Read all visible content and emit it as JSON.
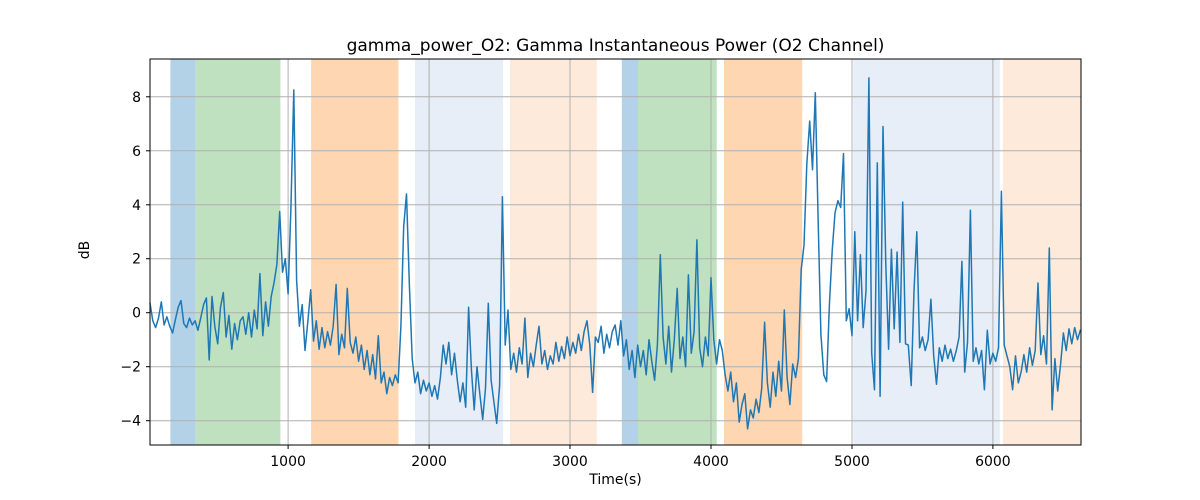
{
  "chart_data": {
    "type": "line",
    "title": "gamma_power_O2: Gamma Instantaneous Power (O2 Channel)",
    "xlabel": "Time(s)",
    "ylabel": "dB",
    "series_name": "gamma_power_O2",
    "legend": false,
    "grid": true,
    "xlim": [
      20,
      6625
    ],
    "ylim": [
      -4.9,
      9.4
    ],
    "x_ticks": [
      {
        "value": 1000,
        "label": "1000"
      },
      {
        "value": 2000,
        "label": "2000"
      },
      {
        "value": 3000,
        "label": "3000"
      },
      {
        "value": 4000,
        "label": "4000"
      },
      {
        "value": 5000,
        "label": "5000"
      },
      {
        "value": 6000,
        "label": "6000"
      }
    ],
    "y_ticks": [
      {
        "value": -4,
        "label": "−4"
      },
      {
        "value": -2,
        "label": "−2"
      },
      {
        "value": 0,
        "label": "0"
      },
      {
        "value": 2,
        "label": "2"
      },
      {
        "value": 4,
        "label": "4"
      },
      {
        "value": 6,
        "label": "6"
      },
      {
        "value": 8,
        "label": "8"
      }
    ],
    "line_color": "#1f77b4",
    "line_width": 1.5,
    "grid_color": "#b0b0b0",
    "spine_color": "#000000",
    "highlight_bands": [
      {
        "start": 165,
        "end": 345,
        "color": "#b3d2e7",
        "name": "blue"
      },
      {
        "start": 345,
        "end": 945,
        "color": "#bfe1c0",
        "name": "green"
      },
      {
        "start": 1163,
        "end": 1782,
        "color": "#fed7b2",
        "name": "orange"
      },
      {
        "start": 1900,
        "end": 2525,
        "color": "#e7eef7",
        "name": "pale-blue"
      },
      {
        "start": 2574,
        "end": 3190,
        "color": "#fdeada",
        "name": "pale-orange"
      },
      {
        "start": 3367,
        "end": 3482,
        "color": "#b3d2e7",
        "name": "blue"
      },
      {
        "start": 3482,
        "end": 4040,
        "color": "#bfe1c0",
        "name": "green"
      },
      {
        "start": 4092,
        "end": 4647,
        "color": "#fed7b2",
        "name": "orange"
      },
      {
        "start": 5009,
        "end": 6050,
        "color": "#e7eef7",
        "name": "pale-blue"
      },
      {
        "start": 6071,
        "end": 6625,
        "color": "#fdeada",
        "name": "pale-orange"
      }
    ],
    "x_start": 20,
    "x_step": 20,
    "values": [
      0.35,
      -0.3,
      -0.55,
      -0.2,
      0.4,
      -0.45,
      -0.15,
      -0.5,
      -0.75,
      -0.25,
      0.2,
      0.45,
      -0.4,
      -0.55,
      -0.2,
      -0.45,
      -0.3,
      -0.65,
      -0.2,
      0.3,
      0.55,
      -1.75,
      0.6,
      -0.5,
      -1.15,
      0.2,
      0.75,
      -0.9,
      -0.1,
      -1.35,
      -0.4,
      -1.0,
      -0.3,
      -0.15,
      -0.8,
      0.0,
      -0.9,
      0.1,
      -0.6,
      1.45,
      -0.85,
      0.4,
      -0.5,
      0.6,
      1.1,
      1.8,
      3.75,
      1.5,
      2.0,
      0.7,
      4.0,
      8.25,
      1.2,
      -0.5,
      0.3,
      -1.4,
      -0.3,
      0.85,
      -1.05,
      -0.3,
      -1.35,
      -0.55,
      -1.3,
      -0.7,
      -1.2,
      -0.5,
      1.05,
      -1.55,
      -0.8,
      -1.3,
      0.9,
      -1.1,
      -1.5,
      -0.9,
      -1.8,
      -1.2,
      -2.1,
      -1.4,
      -2.3,
      -1.55,
      -2.45,
      -0.85,
      -2.6,
      -2.2,
      -3.0,
      -2.4,
      -2.7,
      -2.3,
      -2.6,
      -0.5,
      3.2,
      4.4,
      1.0,
      -1.7,
      -2.6,
      -2.2,
      -3.0,
      -2.5,
      -2.9,
      -2.6,
      -3.1,
      -2.7,
      -3.2,
      -2.4,
      -1.2,
      -1.9,
      -1.1,
      -2.3,
      -1.5,
      -2.5,
      -3.3,
      -2.6,
      -3.5,
      0.2,
      -2.1,
      -3.6,
      -2.0,
      -3.0,
      -3.95,
      -2.8,
      0.35,
      -2.5,
      -3.3,
      -4.1,
      -2.7,
      4.3,
      -1.2,
      0.1,
      -2.1,
      -1.5,
      -2.2,
      -1.3,
      -1.9,
      -0.2,
      -2.4,
      -1.5,
      -2.0,
      -1.2,
      -0.5,
      -1.9,
      -1.4,
      -2.1,
      -1.6,
      -1.9,
      -1.1,
      -1.8,
      -1.25,
      -1.7,
      -0.9,
      -1.6,
      -1.1,
      -1.5,
      -0.8,
      -1.4,
      -0.7,
      -0.3,
      -1.2,
      -2.95,
      -0.9,
      -1.1,
      -0.5,
      -1.5,
      -0.8,
      -1.3,
      -0.7,
      -0.45,
      -1.2,
      -0.3,
      -1.6,
      -1.0,
      -2.1,
      -1.4,
      -2.4,
      -1.2,
      -2.0,
      -1.4,
      -2.3,
      -1.0,
      -1.8,
      -2.5,
      -1.2,
      2.15,
      -0.9,
      -1.9,
      -0.5,
      -2.2,
      -1.0,
      0.9,
      -1.7,
      -0.9,
      -2.0,
      1.4,
      -1.5,
      -0.7,
      2.7,
      -1.3,
      -2.0,
      -0.9,
      -1.6,
      1.3,
      -1.0,
      -1.9,
      -1.0,
      -1.4,
      -2.3,
      -2.9,
      -2.2,
      -3.3,
      -2.6,
      -4.05,
      -3.4,
      -3.0,
      -4.3,
      -3.6,
      -3.9,
      -3.2,
      -3.7,
      -2.8,
      -0.35,
      -2.6,
      -3.5,
      -2.2,
      -3.1,
      -1.8,
      -2.9,
      0.1,
      -2.4,
      -3.4,
      -1.9,
      -2.4,
      -1.7,
      1.6,
      2.5,
      5.5,
      7.1,
      5.3,
      8.15,
      3.5,
      -0.8,
      -2.3,
      -2.55,
      0.3,
      2.3,
      3.7,
      4.15,
      3.9,
      5.9,
      -0.3,
      0.15,
      -0.85,
      3.0,
      -0.3,
      2.15,
      -0.55,
      0.8,
      8.7,
      -1.5,
      -2.85,
      5.55,
      -3.1,
      6.9,
      1.8,
      -1.35,
      2.35,
      -0.6,
      2.25,
      -1.1,
      4.1,
      -1.15,
      -1.2,
      -2.7,
      0.8,
      3.0,
      -1.3,
      -0.9,
      -1.4,
      -1.0,
      0.5,
      -1.6,
      -2.65,
      -1.3,
      -1.8,
      -1.2,
      -1.7,
      -1.35,
      -1.8,
      -1.4,
      -0.9,
      1.9,
      -2.2,
      -1.1,
      3.8,
      -1.8,
      -1.3,
      -1.9,
      -1.4,
      -2.85,
      -0.65,
      -1.9,
      -1.5,
      -1.8,
      -1.3,
      4.5,
      -1.2,
      -1.6,
      -2.0,
      -2.85,
      -1.6,
      -2.6,
      -2.2,
      -1.55,
      -2.2,
      -1.3,
      -1.95,
      -1.4,
      1.1,
      -1.55,
      -0.85,
      -1.9,
      2.4,
      -3.6,
      -1.7,
      -2.9,
      -1.9,
      -0.75,
      -1.4,
      -0.6,
      -1.15,
      -0.55,
      -1.0,
      -0.65
    ]
  }
}
